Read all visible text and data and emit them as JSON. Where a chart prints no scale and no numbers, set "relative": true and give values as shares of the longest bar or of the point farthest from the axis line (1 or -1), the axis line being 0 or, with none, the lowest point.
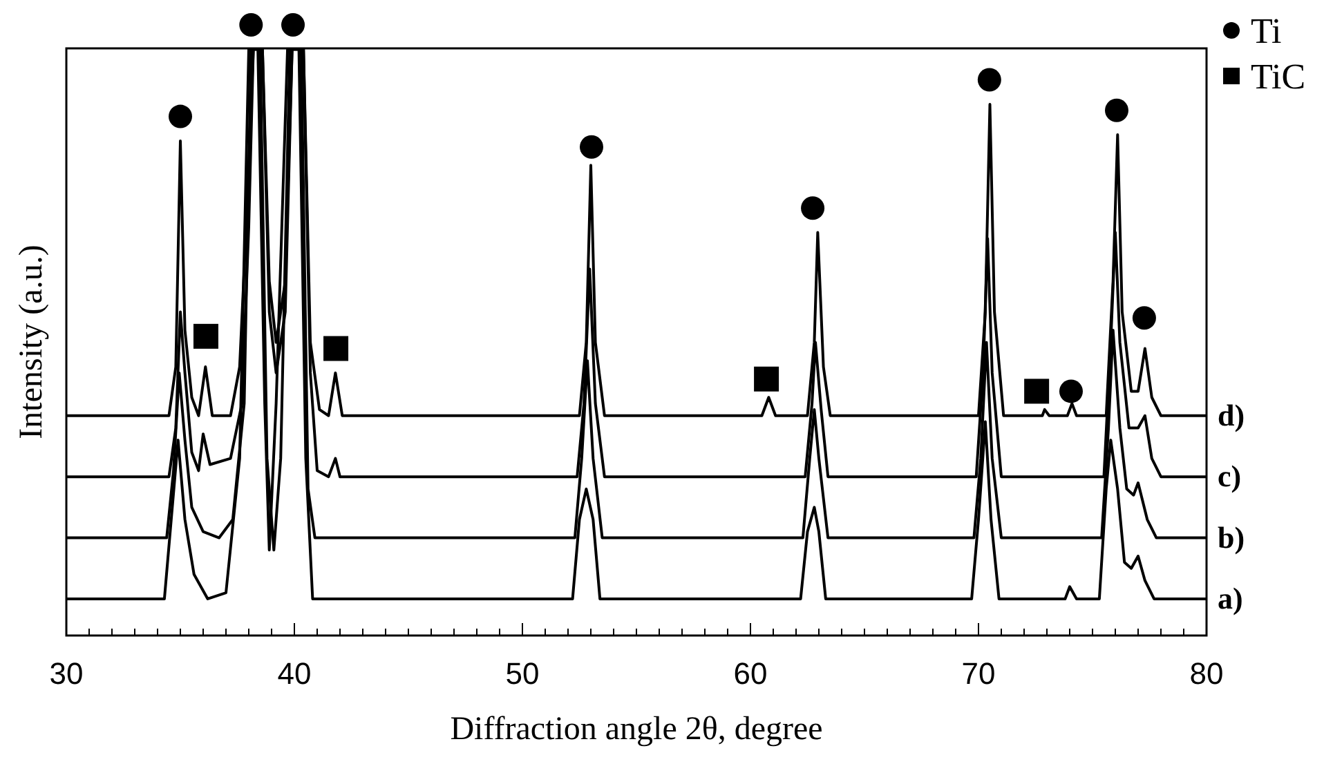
{
  "chart_data": {
    "type": "line",
    "relative": true,
    "xlabel": "Diffraction angle 2θ, degree",
    "ylabel": "Intensity (a.u.)",
    "xlim": [
      30,
      80
    ],
    "xticks": [
      30,
      {
        "value": 31,
        "label": null
      },
      {
        "value": 32,
        "label": null
      },
      {
        "value": 33,
        "label": null
      },
      {
        "value": 34,
        "label": null
      },
      {
        "value": 35,
        "label": null
      },
      {
        "value": 36,
        "label": null
      },
      {
        "value": 37,
        "label": null
      },
      {
        "value": 38,
        "label": null
      },
      {
        "value": 39,
        "label": null
      },
      40,
      {
        "value": 41,
        "label": null
      },
      {
        "value": 42,
        "label": null
      },
      {
        "value": 43,
        "label": null
      },
      {
        "value": 44,
        "label": null
      },
      {
        "value": 45,
        "label": null
      },
      {
        "value": 46,
        "label": null
      },
      {
        "value": 47,
        "label": null
      },
      {
        "value": 48,
        "label": null
      },
      {
        "value": 49,
        "label": null
      },
      50,
      {
        "value": 51,
        "label": null
      },
      {
        "value": 52,
        "label": null
      },
      {
        "value": 53,
        "label": null
      },
      {
        "value": 54,
        "label": null
      },
      {
        "value": 55,
        "label": null
      },
      {
        "value": 56,
        "label": null
      },
      {
        "value": 57,
        "label": null
      },
      {
        "value": 58,
        "label": null
      },
      {
        "value": 59,
        "label": null
      },
      60,
      {
        "value": 61,
        "label": null
      },
      {
        "value": 62,
        "label": null
      },
      {
        "value": 63,
        "label": null
      },
      {
        "value": 64,
        "label": null
      },
      {
        "value": 65,
        "label": null
      },
      {
        "value": 66,
        "label": null
      },
      {
        "value": 67,
        "label": null
      },
      {
        "value": 68,
        "label": null
      },
      {
        "value": 69,
        "label": null
      },
      70,
      {
        "value": 71,
        "label": null
      },
      {
        "value": 72,
        "label": null
      },
      {
        "value": 73,
        "label": null
      },
      {
        "value": 74,
        "label": null
      },
      {
        "value": 75,
        "label": null
      },
      {
        "value": 76,
        "label": null
      },
      {
        "value": 77,
        "label": null
      },
      {
        "value": 78,
        "label": null
      },
      {
        "value": 79,
        "label": null
      },
      80
    ],
    "grid": false,
    "legend": "top right",
    "line_style": "solid",
    "series": [
      {
        "name": "d)",
        "color": "#000000",
        "marker": "none",
        "x": [
          30,
          34.5,
          34.8,
          35.0,
          35.2,
          35.5,
          35.8,
          36.1,
          36.4,
          37.2,
          37.6,
          37.9,
          38.2,
          38.6,
          38.9,
          39.2,
          39.6,
          39.9,
          40.4,
          40.7,
          41.1,
          41.5,
          41.8,
          42.1,
          52.5,
          52.8,
          53.0,
          53.2,
          53.6,
          60.5,
          60.8,
          61.1,
          62.5,
          62.8,
          62.95,
          63.2,
          63.5,
          70.0,
          70.3,
          70.5,
          70.7,
          71.1,
          72.8,
          72.9,
          73.1,
          73.9,
          74.1,
          74.3,
          75.6,
          75.9,
          76.1,
          76.3,
          76.7,
          77.0,
          77.3,
          77.6,
          78.0,
          80
        ],
        "values": [
          0.36,
          0.36,
          0.44,
          0.81,
          0.5,
          0.39,
          0.36,
          0.44,
          0.36,
          0.36,
          0.44,
          0.68,
          0.96,
          0.96,
          0.58,
          0.48,
          0.58,
          0.96,
          0.96,
          0.48,
          0.37,
          0.36,
          0.43,
          0.36,
          0.36,
          0.48,
          0.77,
          0.48,
          0.36,
          0.36,
          0.39,
          0.36,
          0.36,
          0.48,
          0.66,
          0.44,
          0.36,
          0.36,
          0.53,
          0.87,
          0.53,
          0.36,
          0.36,
          0.37,
          0.36,
          0.36,
          0.38,
          0.36,
          0.36,
          0.58,
          0.82,
          0.53,
          0.4,
          0.4,
          0.47,
          0.39,
          0.36,
          0.36
        ]
      },
      {
        "name": "c)",
        "color": "#000000",
        "marker": "none",
        "x": [
          30,
          34.5,
          34.8,
          35.0,
          35.2,
          35.5,
          35.8,
          36.0,
          36.3,
          37.2,
          37.7,
          38.0,
          38.2,
          38.6,
          38.9,
          39.2,
          39.6,
          39.9,
          40.4,
          40.7,
          41.0,
          41.5,
          41.8,
          42.0,
          52.4,
          52.7,
          52.95,
          53.2,
          53.6,
          62.4,
          62.7,
          62.85,
          63.1,
          63.4,
          69.9,
          70.2,
          70.4,
          70.6,
          71.0,
          75.5,
          75.8,
          76.0,
          76.2,
          76.6,
          77.0,
          77.3,
          77.6,
          78.0,
          80
        ],
        "values": [
          0.26,
          0.26,
          0.34,
          0.53,
          0.43,
          0.3,
          0.27,
          0.33,
          0.28,
          0.29,
          0.38,
          0.67,
          0.96,
          0.96,
          0.53,
          0.43,
          0.53,
          0.96,
          0.96,
          0.43,
          0.27,
          0.26,
          0.29,
          0.26,
          0.26,
          0.38,
          0.6,
          0.38,
          0.26,
          0.26,
          0.38,
          0.48,
          0.37,
          0.26,
          0.26,
          0.43,
          0.65,
          0.43,
          0.26,
          0.26,
          0.48,
          0.66,
          0.48,
          0.34,
          0.34,
          0.36,
          0.29,
          0.26,
          0.26
        ]
      },
      {
        "name": "b)",
        "color": "#000000",
        "marker": "none",
        "x": [
          30,
          34.4,
          34.7,
          34.95,
          35.2,
          35.5,
          36.0,
          36.7,
          37.3,
          37.8,
          38.1,
          38.5,
          38.8,
          39.1,
          39.4,
          39.8,
          40.3,
          40.6,
          40.9,
          52.3,
          52.6,
          52.85,
          53.1,
          53.5,
          62.3,
          62.6,
          62.8,
          63.0,
          63.4,
          69.8,
          70.1,
          70.35,
          70.6,
          71.0,
          75.4,
          75.7,
          75.9,
          76.2,
          76.5,
          76.8,
          77.0,
          77.4,
          77.8,
          80
        ],
        "values": [
          0.16,
          0.16,
          0.27,
          0.43,
          0.32,
          0.21,
          0.17,
          0.16,
          0.19,
          0.38,
          0.96,
          0.96,
          0.29,
          0.14,
          0.29,
          0.96,
          0.96,
          0.24,
          0.16,
          0.16,
          0.29,
          0.45,
          0.29,
          0.16,
          0.16,
          0.29,
          0.37,
          0.29,
          0.16,
          0.16,
          0.29,
          0.48,
          0.29,
          0.16,
          0.16,
          0.34,
          0.5,
          0.34,
          0.24,
          0.23,
          0.25,
          0.19,
          0.16,
          0.16
        ]
      },
      {
        "name": "a)",
        "color": "#000000",
        "marker": "none",
        "x": [
          30,
          34.3,
          34.6,
          34.9,
          35.2,
          35.6,
          36.2,
          37.0,
          37.6,
          38.0,
          38.4,
          38.7,
          38.9,
          39.2,
          39.7,
          40.2,
          40.5,
          40.8,
          52.2,
          52.5,
          52.8,
          53.1,
          53.4,
          62.2,
          62.5,
          62.8,
          63.0,
          63.3,
          69.7,
          70.0,
          70.3,
          70.55,
          70.9,
          73.8,
          74.0,
          74.3,
          75.3,
          75.6,
          75.8,
          76.1,
          76.4,
          76.7,
          77.0,
          77.3,
          77.7,
          80
        ],
        "values": [
          0.06,
          0.06,
          0.19,
          0.32,
          0.19,
          0.1,
          0.06,
          0.07,
          0.29,
          0.96,
          0.96,
          0.38,
          0.14,
          0.38,
          0.96,
          0.96,
          0.29,
          0.06,
          0.06,
          0.19,
          0.24,
          0.19,
          0.06,
          0.06,
          0.17,
          0.21,
          0.17,
          0.06,
          0.06,
          0.19,
          0.35,
          0.19,
          0.06,
          0.06,
          0.08,
          0.06,
          0.06,
          0.24,
          0.32,
          0.24,
          0.12,
          0.11,
          0.13,
          0.09,
          0.06,
          0.06
        ]
      },
      {
        "name": "Ti",
        "type": "scatter",
        "marker": "circle",
        "color": "#000000",
        "x": [
          35.0,
          38.1,
          39.94,
          53.03,
          62.73,
          70.48,
          74.06,
          76.06,
          77.27
        ],
        "values": [
          0.85,
          1.0,
          1.0,
          0.8,
          0.7,
          0.91,
          0.4,
          0.86,
          0.52
        ]
      },
      {
        "name": "TiC",
        "type": "scatter",
        "marker": "square",
        "color": "#000000",
        "x": [
          36.12,
          41.82,
          60.7,
          72.55
        ],
        "values": [
          0.49,
          0.47,
          0.42,
          0.4
        ]
      }
    ]
  }
}
